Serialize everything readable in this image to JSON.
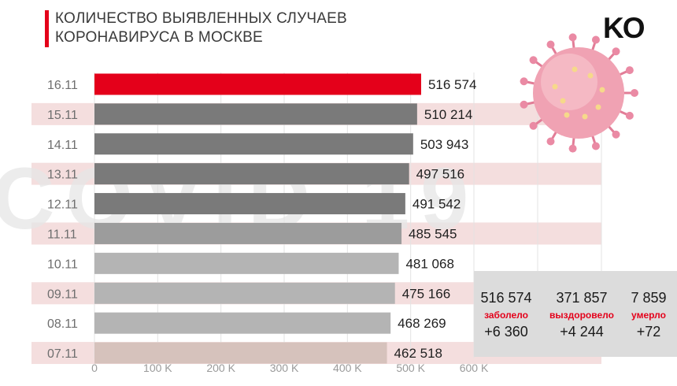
{
  "title": {
    "line1": "КОЛИЧЕСТВО ВЫЯВЛЕННЫХ СЛУЧАЕВ",
    "line2": "КОРОНАВИРУСА В МОСКВЕ"
  },
  "logo": "KO",
  "watermark": "COVID-19",
  "colors": {
    "accent": "#e4001a",
    "bar_dark": "#7a7a7a",
    "bar_mid": "#9c9c9c",
    "bar_light": "#b4b4b4",
    "bar_first": "#d6c2bc",
    "band": "#f4dede"
  },
  "stats": {
    "infected": {
      "value": "516 574",
      "label": "заболело",
      "delta": "+6 360"
    },
    "recovered": {
      "value": "371 857",
      "label": "выздоровело",
      "delta": "+4 244"
    },
    "died": {
      "value": "7 859",
      "label": "умерло",
      "delta": "+72"
    }
  },
  "chart_data": {
    "type": "bar",
    "orientation": "horizontal",
    "title": "КОЛИЧЕСТВО ВЫЯВЛЕННЫХ СЛУЧАЕВ КОРОНАВИРУСА В МОСКВЕ",
    "categories": [
      "16.11",
      "15.11",
      "14.11",
      "13.11",
      "12.11",
      "11.11",
      "10.11",
      "09.11",
      "08.11",
      "07.11"
    ],
    "values": [
      516574,
      510214,
      503943,
      497516,
      491542,
      485545,
      481068,
      475166,
      468269,
      462518
    ],
    "value_labels": [
      "516 574",
      "510 214",
      "503 943",
      "497 516",
      "491 542",
      "485 545",
      "481 068",
      "475 166",
      "468 269",
      "462 518"
    ],
    "x_ticks": [
      0,
      100000,
      200000,
      300000,
      400000,
      500000,
      600000
    ],
    "x_tick_labels": [
      "0",
      "100 K",
      "200 K",
      "300 K",
      "400 K",
      "500 K",
      "600 K"
    ],
    "xlim": [
      0,
      600000
    ],
    "highlight": "16.11"
  }
}
